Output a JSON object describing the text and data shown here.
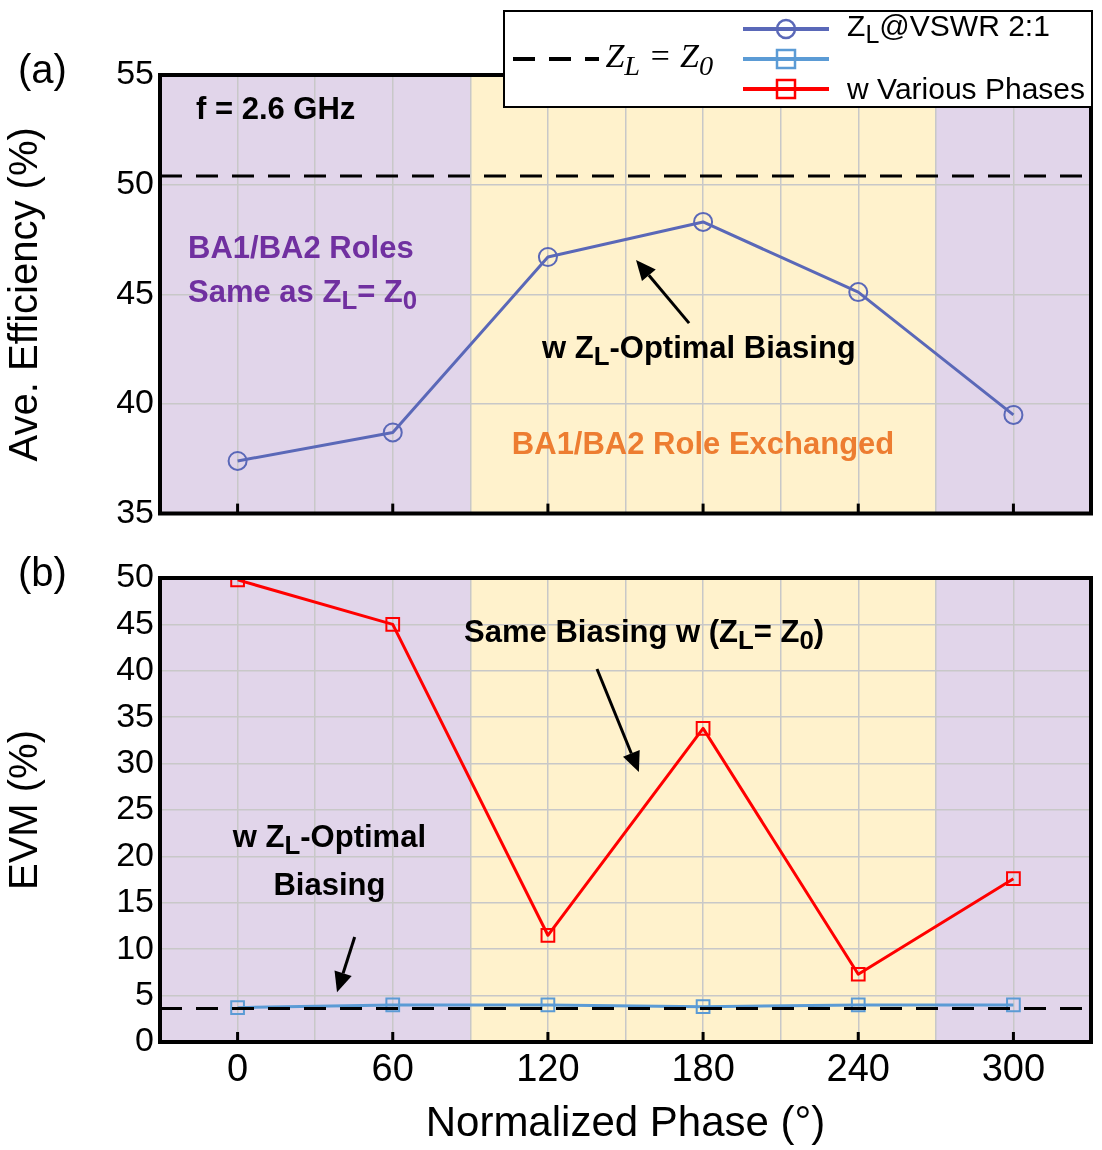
{
  "chart_data": [
    {
      "type": "line",
      "title": "(a)",
      "ylabel": "Ave. Efficiency (%)",
      "x": [
        0,
        60,
        120,
        180,
        240,
        300
      ],
      "series": [
        {
          "name": "Z$_{L}$@VSWR 2:1",
          "color": "#5a68b8",
          "marker": "circle",
          "values": [
            37.4,
            38.7,
            46.7,
            48.3,
            45.1,
            39.5
          ]
        }
      ],
      "xlim": [
        -30,
        330
      ],
      "xticks": [
        {
          "value": 0,
          "label": null
        },
        {
          "value": 30,
          "label": null
        },
        {
          "value": 60,
          "label": null
        },
        {
          "value": 90,
          "label": null
        },
        {
          "value": 120,
          "label": null
        },
        {
          "value": 150,
          "label": null
        },
        {
          "value": 180,
          "label": null
        },
        {
          "value": 210,
          "label": null
        },
        {
          "value": 240,
          "label": null
        },
        {
          "value": 270,
          "label": null
        },
        {
          "value": 300,
          "label": null
        }
      ],
      "ylim": [
        35,
        55
      ],
      "yticks": [
        35,
        40,
        45,
        50,
        55
      ],
      "tick_labels": "y",
      "grid": true,
      "legend": "top right",
      "line_style": "solid",
      "ref_lines": [
        {
          "axis": "y",
          "value": 50.4,
          "label": "Z$_{L}$ = Z$_{0}$",
          "color": "#000000",
          "line_style": "dashed"
        }
      ],
      "bands": [
        {
          "axis": "x",
          "from": -30,
          "to": 90,
          "label": "BA1/BA2 Roles Same as Z$_{L}$= Z$_{0}$",
          "color": "#e1d5ea"
        },
        {
          "axis": "x",
          "from": 90,
          "to": 270,
          "label": "BA1/BA2 Role Exchanged",
          "color": "#fff2cc"
        },
        {
          "axis": "x",
          "from": 270,
          "to": 330,
          "color": "#e1d5ea"
        }
      ],
      "annotations": [
        "f = 2.6 GHz",
        "w Z$_{L}$-Optimal Biasing"
      ]
    },
    {
      "type": "line",
      "title": "(b)",
      "xlabel": "Normalized Phase (°)",
      "ylabel": "EVM (%)",
      "x": [
        0,
        60,
        120,
        180,
        240,
        300
      ],
      "series": [
        {
          "color": "#5b9bd5",
          "marker": "square",
          "values": [
            3.7,
            4.0,
            4.0,
            3.8,
            4.0,
            4.0
          ]
        },
        {
          "name": "w  Various Phases",
          "color": "#ff0000",
          "marker": "square",
          "values": [
            49.8,
            45.0,
            11.5,
            33.8,
            7.3,
            17.6
          ]
        }
      ],
      "xlim": [
        -30,
        330
      ],
      "xticks": [
        0,
        {
          "value": 30,
          "label": null
        },
        60,
        {
          "value": 90,
          "label": null
        },
        120,
        {
          "value": 150,
          "label": null
        },
        180,
        {
          "value": 210,
          "label": null
        },
        240,
        {
          "value": 270,
          "label": null
        },
        300
      ],
      "ylim": [
        0,
        50
      ],
      "yticks": [
        0,
        5,
        10,
        15,
        20,
        25,
        30,
        35,
        40,
        45,
        50
      ],
      "grid": true,
      "legend": "top right",
      "line_style": "solid",
      "ref_lines": [
        {
          "axis": "y",
          "value": 3.6,
          "color": "#000000",
          "line_style": "dashed"
        }
      ],
      "bands": [
        {
          "axis": "x",
          "from": -30,
          "to": 90,
          "color": "#e1d5ea"
        },
        {
          "axis": "x",
          "from": 90,
          "to": 270,
          "color": "#fff2cc"
        },
        {
          "axis": "x",
          "from": 270,
          "to": 330,
          "color": "#e1d5ea"
        }
      ],
      "annotations": [
        "Same Biasing w (Z$_{L}$= Z$_{0}$)",
        "w Z$_{L}$-Optimal Biasing"
      ]
    }
  ]
}
